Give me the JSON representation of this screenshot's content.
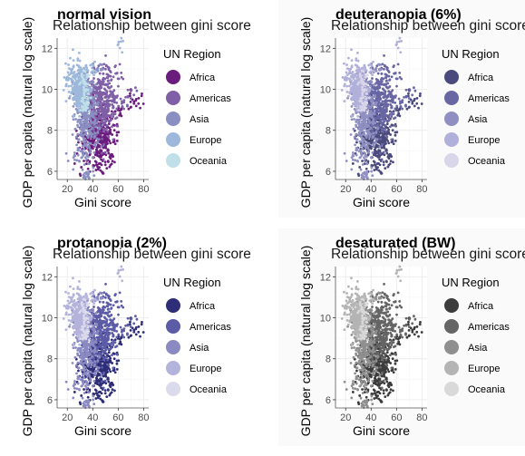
{
  "chart_data": [
    {
      "type": "scatter",
      "title": "normal vision",
      "subtitle": "Relationship between gini score",
      "xlabel": "Gini score",
      "ylabel": "GDP per capita (natural log scale)",
      "xlim": [
        12,
        84
      ],
      "ylim": [
        5.6,
        12.5
      ],
      "xticks": [
        20,
        40,
        60,
        80
      ],
      "yticks": [
        6,
        8,
        10,
        12
      ],
      "grid": true,
      "legend": {
        "title": "UN Region",
        "position": "right"
      },
      "series": [
        {
          "name": "Africa",
          "color": "#6b1d7e",
          "centroid": [
            44,
            7.8
          ],
          "spread": [
            10,
            1.0
          ],
          "count": 420,
          "points": [
            [
              62,
              9.0
            ],
            [
              70,
              9.5
            ],
            [
              75,
              9.4
            ],
            [
              55,
              6.5
            ],
            [
              42,
              6.3
            ],
            [
              48,
              6.6
            ]
          ]
        },
        {
          "name": "Americas",
          "color": "#7f5fa6",
          "centroid": [
            47,
            9.4
          ],
          "spread": [
            8,
            1.2
          ],
          "count": 360,
          "points": [
            [
              60,
              10.8
            ],
            [
              58,
              9.6
            ],
            [
              65,
              9.2
            ],
            [
              52,
              11.1
            ],
            [
              70,
              9.8
            ]
          ]
        },
        {
          "name": "Asia",
          "color": "#8a8fc2",
          "centroid": [
            35,
            8.7
          ],
          "spread": [
            7,
            1.4
          ],
          "count": 340,
          "points": [
            [
              30,
              7.0
            ],
            [
              24,
              6.8
            ],
            [
              45,
              11.0
            ],
            [
              36,
              5.8
            ],
            [
              33,
              5.8
            ],
            [
              39,
              5.8
            ]
          ]
        },
        {
          "name": "Europe",
          "color": "#9db8da",
          "centroid": [
            30,
            10.0
          ],
          "spread": [
            5,
            0.7
          ],
          "count": 320,
          "points": [
            [
              22,
              10.9
            ],
            [
              20,
              10.3
            ],
            [
              38,
              11.2
            ],
            [
              62,
              12.2
            ],
            [
              26,
              11.3
            ]
          ]
        },
        {
          "name": "Oceania",
          "color": "#bfe0e9",
          "centroid": [
            34,
            9.4
          ],
          "spread": [
            3,
            0.6
          ],
          "count": 35,
          "points": [
            [
              32,
              10.5
            ],
            [
              36,
              10.6
            ]
          ]
        }
      ]
    },
    {
      "type": "scatter",
      "title": "deuteranopia (6%)",
      "subtitle": "Relationship between gini score",
      "xlabel": "Gini score",
      "ylabel": "GDP per capita (natural log scale)",
      "xlim": [
        12,
        84
      ],
      "ylim": [
        5.6,
        12.5
      ],
      "xticks": [
        20,
        40,
        60,
        80
      ],
      "yticks": [
        6,
        8,
        10,
        12
      ],
      "grid": true,
      "legend": {
        "title": "UN Region",
        "position": "right"
      },
      "series": [
        {
          "name": "Africa",
          "color": "#4b4a7c",
          "centroid": [
            44,
            7.8
          ],
          "spread": [
            10,
            1.0
          ],
          "count": 420,
          "points": [
            [
              62,
              9.0
            ],
            [
              70,
              9.5
            ],
            [
              75,
              9.4
            ],
            [
              55,
              6.5
            ],
            [
              42,
              6.3
            ],
            [
              48,
              6.6
            ]
          ]
        },
        {
          "name": "Americas",
          "color": "#6966a4",
          "centroid": [
            47,
            9.4
          ],
          "spread": [
            8,
            1.2
          ],
          "count": 360,
          "points": [
            [
              60,
              10.8
            ],
            [
              58,
              9.6
            ],
            [
              65,
              9.2
            ],
            [
              52,
              11.1
            ],
            [
              70,
              9.8
            ]
          ]
        },
        {
          "name": "Asia",
          "color": "#8f8fc2",
          "centroid": [
            35,
            8.7
          ],
          "spread": [
            7,
            1.4
          ],
          "count": 340,
          "points": [
            [
              30,
              7.0
            ],
            [
              24,
              6.8
            ],
            [
              45,
              11.0
            ],
            [
              36,
              5.8
            ],
            [
              33,
              5.8
            ],
            [
              39,
              5.8
            ]
          ]
        },
        {
          "name": "Europe",
          "color": "#b1b0da",
          "centroid": [
            30,
            10.0
          ],
          "spread": [
            5,
            0.7
          ],
          "count": 320,
          "points": [
            [
              22,
              10.9
            ],
            [
              20,
              10.3
            ],
            [
              38,
              11.2
            ],
            [
              62,
              12.2
            ],
            [
              26,
              11.3
            ]
          ]
        },
        {
          "name": "Oceania",
          "color": "#d9d6ea",
          "centroid": [
            34,
            9.4
          ],
          "spread": [
            3,
            0.6
          ],
          "count": 35,
          "points": [
            [
              32,
              10.5
            ],
            [
              36,
              10.6
            ]
          ]
        }
      ]
    },
    {
      "type": "scatter",
      "title": "protanopia (2%)",
      "subtitle": "Relationship between gini score",
      "xlabel": "Gini score",
      "ylabel": "GDP per capita (natural log scale)",
      "xlim": [
        12,
        84
      ],
      "ylim": [
        5.6,
        12.5
      ],
      "xticks": [
        20,
        40,
        60,
        80
      ],
      "yticks": [
        6,
        8,
        10,
        12
      ],
      "grid": true,
      "legend": {
        "title": "UN Region",
        "position": "right"
      },
      "series": [
        {
          "name": "Africa",
          "color": "#2e2d78",
          "centroid": [
            44,
            7.8
          ],
          "spread": [
            10,
            1.0
          ],
          "count": 420,
          "points": [
            [
              62,
              9.0
            ],
            [
              70,
              9.5
            ],
            [
              75,
              9.4
            ],
            [
              55,
              6.5
            ],
            [
              42,
              6.3
            ],
            [
              48,
              6.6
            ]
          ]
        },
        {
          "name": "Americas",
          "color": "#5c5ba6",
          "centroid": [
            47,
            9.4
          ],
          "spread": [
            8,
            1.2
          ],
          "count": 360,
          "points": [
            [
              60,
              10.8
            ],
            [
              58,
              9.6
            ],
            [
              65,
              9.2
            ],
            [
              52,
              11.1
            ],
            [
              70,
              9.8
            ]
          ]
        },
        {
          "name": "Asia",
          "color": "#8a89c2",
          "centroid": [
            35,
            8.7
          ],
          "spread": [
            7,
            1.4
          ],
          "count": 340,
          "points": [
            [
              30,
              7.0
            ],
            [
              24,
              6.8
            ],
            [
              45,
              11.0
            ],
            [
              36,
              5.8
            ],
            [
              33,
              5.8
            ],
            [
              39,
              5.8
            ]
          ]
        },
        {
          "name": "Europe",
          "color": "#b4b3db",
          "centroid": [
            30,
            10.0
          ],
          "spread": [
            5,
            0.7
          ],
          "count": 320,
          "points": [
            [
              22,
              10.9
            ],
            [
              20,
              10.3
            ],
            [
              38,
              11.2
            ],
            [
              62,
              12.2
            ],
            [
              26,
              11.3
            ]
          ]
        },
        {
          "name": "Oceania",
          "color": "#dcdbeb",
          "centroid": [
            34,
            9.4
          ],
          "spread": [
            3,
            0.6
          ],
          "count": 35,
          "points": [
            [
              32,
              10.5
            ],
            [
              36,
              10.6
            ]
          ]
        }
      ]
    },
    {
      "type": "scatter",
      "title": "desaturated (BW)",
      "subtitle": "Relationship between gini score",
      "xlabel": "Gini score",
      "ylabel": "GDP per capita (natural log scale)",
      "xlim": [
        12,
        84
      ],
      "ylim": [
        5.6,
        12.5
      ],
      "xticks": [
        20,
        40,
        60,
        80
      ],
      "yticks": [
        6,
        8,
        10,
        12
      ],
      "grid": true,
      "legend": {
        "title": "UN Region",
        "position": "right"
      },
      "series": [
        {
          "name": "Africa",
          "color": "#3c3c3c",
          "centroid": [
            44,
            7.8
          ],
          "spread": [
            10,
            1.0
          ],
          "count": 420,
          "points": [
            [
              62,
              9.0
            ],
            [
              70,
              9.5
            ],
            [
              75,
              9.4
            ],
            [
              55,
              6.5
            ],
            [
              42,
              6.3
            ],
            [
              48,
              6.6
            ]
          ]
        },
        {
          "name": "Americas",
          "color": "#656565",
          "centroid": [
            47,
            9.4
          ],
          "spread": [
            8,
            1.2
          ],
          "count": 360,
          "points": [
            [
              60,
              10.8
            ],
            [
              58,
              9.6
            ],
            [
              65,
              9.2
            ],
            [
              52,
              11.1
            ],
            [
              70,
              9.8
            ]
          ]
        },
        {
          "name": "Asia",
          "color": "#8f8f8f",
          "centroid": [
            35,
            8.7
          ],
          "spread": [
            7,
            1.4
          ],
          "count": 340,
          "points": [
            [
              30,
              7.0
            ],
            [
              24,
              6.8
            ],
            [
              45,
              11.0
            ],
            [
              36,
              5.8
            ],
            [
              33,
              5.8
            ],
            [
              39,
              5.8
            ]
          ]
        },
        {
          "name": "Europe",
          "color": "#b4b4b4",
          "centroid": [
            30,
            10.0
          ],
          "spread": [
            5,
            0.7
          ],
          "count": 320,
          "points": [
            [
              22,
              10.9
            ],
            [
              20,
              10.3
            ],
            [
              38,
              11.2
            ],
            [
              62,
              12.2
            ],
            [
              26,
              11.3
            ]
          ]
        },
        {
          "name": "Oceania",
          "color": "#d9d9d9",
          "centroid": [
            34,
            9.4
          ],
          "spread": [
            3,
            0.6
          ],
          "count": 35,
          "points": [
            [
              32,
              10.5
            ],
            [
              36,
              10.6
            ]
          ]
        }
      ]
    }
  ]
}
